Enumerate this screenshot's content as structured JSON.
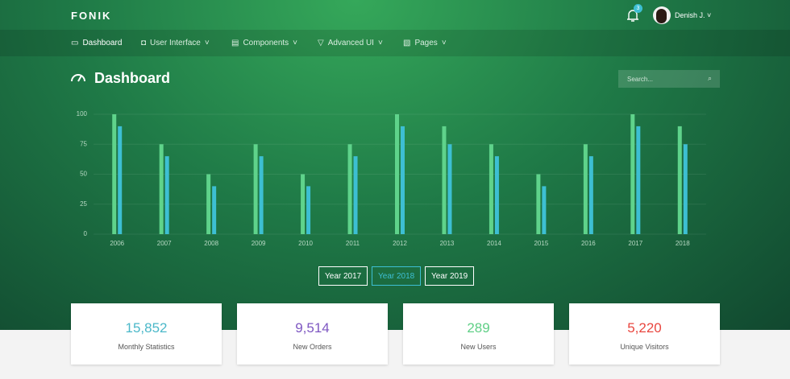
{
  "header": {
    "brand": "FONIK",
    "notification_count": "3",
    "user_name": "Denish J."
  },
  "nav": [
    "Dashboard",
    "User Interface",
    "Components",
    "Advanced UI",
    "Pages"
  ],
  "page_title": "Dashboard",
  "search_placeholder": "Search...",
  "chart_data": {
    "type": "bar",
    "categories": [
      "2006",
      "2007",
      "2008",
      "2009",
      "2010",
      "2011",
      "2012",
      "2013",
      "2014",
      "2015",
      "2016",
      "2017",
      "2018"
    ],
    "series": [
      {
        "color": "#5fd38b",
        "values": [
          100,
          75,
          50,
          75,
          50,
          75,
          100,
          90,
          75,
          50,
          75,
          100,
          90
        ]
      },
      {
        "color": "#3dbfd3",
        "values": [
          90,
          65,
          40,
          65,
          40,
          65,
          90,
          75,
          65,
          40,
          65,
          90,
          75
        ]
      }
    ],
    "ylim": [
      0,
      100
    ],
    "yticks": [
      0,
      25,
      50,
      75,
      100
    ],
    "grid": true
  },
  "year_buttons": [
    "Year 2017",
    "Year 2018",
    "Year 2019"
  ],
  "stats": [
    {
      "value": "15,852",
      "label": "Monthly Statistics",
      "color": "#4bb8c9"
    },
    {
      "value": "9,514",
      "label": "New Orders",
      "color": "#7e57c2"
    },
    {
      "value": "289",
      "label": "New Users",
      "color": "#5fcf86"
    },
    {
      "value": "5,220",
      "label": "Unique Visitors",
      "color": "#e9463f"
    }
  ]
}
